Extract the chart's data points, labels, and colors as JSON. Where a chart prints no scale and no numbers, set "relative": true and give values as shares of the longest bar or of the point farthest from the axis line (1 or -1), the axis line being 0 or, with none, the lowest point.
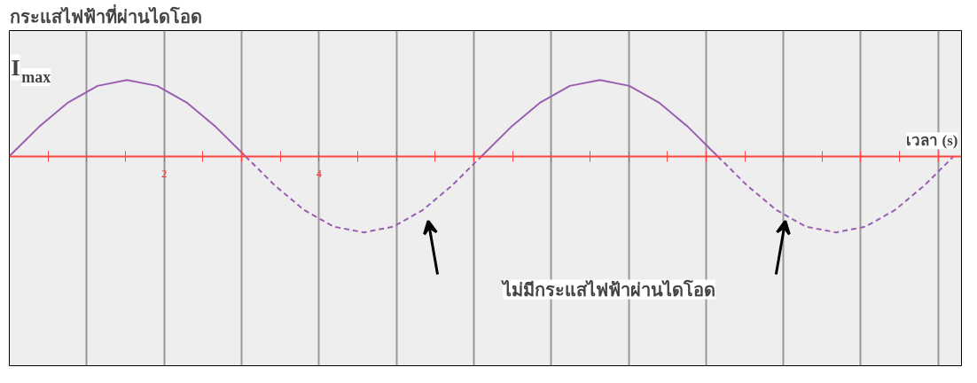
{
  "chart_data": {
    "type": "line",
    "title": "กระแสไฟฟ้าที่ผ่านไดโอด",
    "xlabel": "เวลา (s)",
    "ylabel": "I$_{max}$",
    "relative": true,
    "x": [
      0,
      0.38,
      0.76,
      1.14,
      1.52,
      1.91,
      2.29,
      2.67,
      3.05,
      3.43,
      3.81,
      4.19,
      4.58,
      4.96,
      5.34,
      5.72,
      6.1,
      6.48,
      6.86,
      7.24,
      7.63,
      8.01,
      8.39,
      8.77,
      9.15,
      9.53,
      9.91,
      10.29,
      10.68,
      11.06,
      11.44,
      11.82,
      12.2
    ],
    "series": [
      {
        "color": "#9a5fb0",
        "line_style": "solid",
        "values": [
          0,
          0.383,
          0.707,
          0.924,
          1,
          0.924,
          0.707,
          0.383,
          0,
          null,
          null,
          null,
          null,
          null,
          null,
          null,
          0,
          0.383,
          0.707,
          0.924,
          1,
          0.924,
          0.707,
          0.383,
          0,
          null,
          null,
          null,
          null,
          null,
          null,
          null,
          null
        ]
      },
      {
        "color": "#9a5fb0",
        "line_style": "dashed",
        "values": [
          null,
          null,
          null,
          null,
          null,
          null,
          null,
          null,
          0,
          -0.383,
          -0.707,
          -0.924,
          -1,
          -0.924,
          -0.707,
          -0.383,
          0,
          null,
          null,
          null,
          null,
          null,
          null,
          null,
          0,
          -0.383,
          -0.707,
          -0.924,
          -1,
          -0.924,
          -0.707,
          -0.383,
          0
        ]
      }
    ],
    "xlim": [
      0,
      12.3
    ],
    "xticks": [
      {
        "value": 0.5,
        "label": null
      },
      {
        "value": 1,
        "label": null
      },
      {
        "value": 1.5,
        "label": null
      },
      2,
      {
        "value": 2.5,
        "label": null
      },
      {
        "value": 3,
        "label": null
      },
      {
        "value": 3.5,
        "label": null
      },
      4,
      {
        "value": 4.5,
        "label": null
      },
      {
        "value": 5,
        "label": null
      },
      {
        "value": 5.5,
        "label": null
      },
      {
        "value": 6,
        "label": null
      },
      {
        "value": 6.5,
        "label": null
      },
      {
        "value": 7,
        "label": null
      },
      {
        "value": 7.5,
        "label": null
      },
      {
        "value": 8,
        "label": null
      },
      {
        "value": 8.5,
        "label": null
      },
      {
        "value": 9,
        "label": null
      },
      {
        "value": 9.5,
        "label": null
      },
      {
        "value": 10,
        "label": null
      },
      {
        "value": 10.5,
        "label": null
      },
      {
        "value": 11,
        "label": null
      },
      {
        "value": 11.5,
        "label": null
      },
      {
        "value": 12,
        "label": null
      }
    ],
    "grid": "x",
    "annotations": [
      "ไม่มีกระแสไฟฟ้าผ่านไดโอด"
    ]
  }
}
